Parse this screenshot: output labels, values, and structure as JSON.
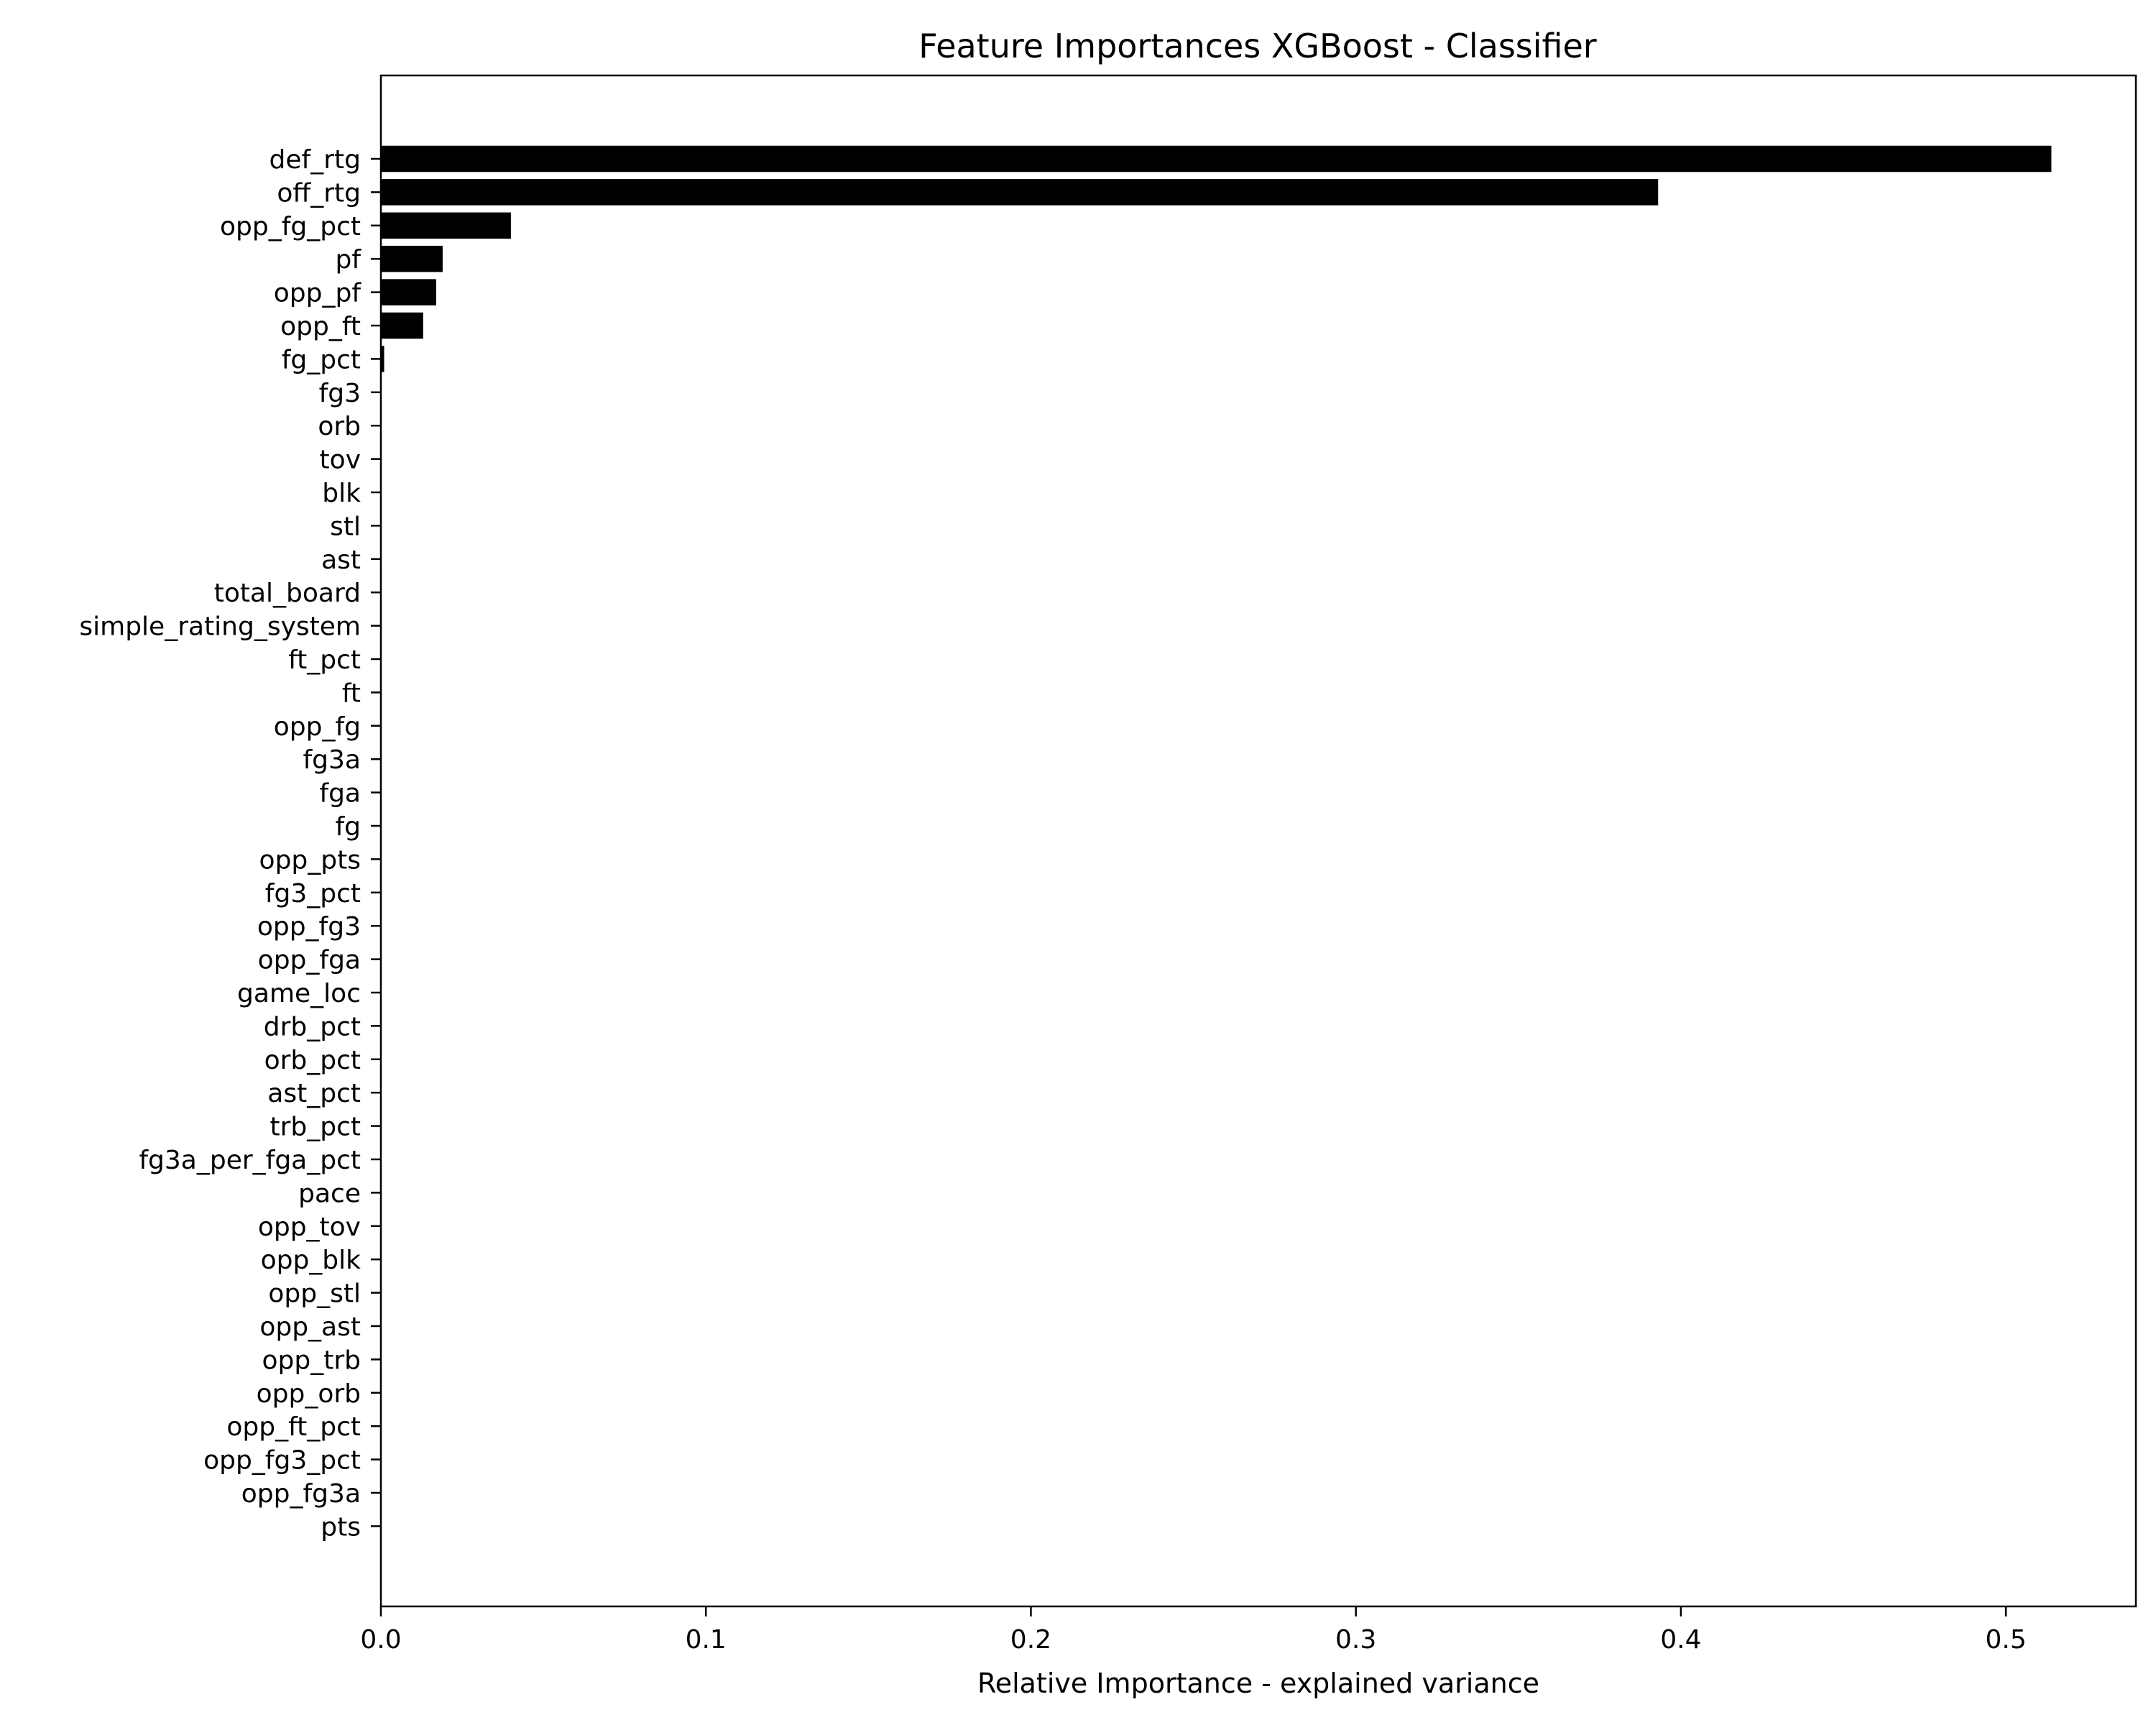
{
  "chart_data": {
    "type": "bar",
    "orientation": "horizontal",
    "title": "Feature Importances XGBoost - Classifier",
    "xlabel": "Relative Importance - explained variance",
    "ylabel": "",
    "xlim": [
      0.0,
      0.54
    ],
    "xticks": [
      0.0,
      0.1,
      0.2,
      0.3,
      0.4,
      0.5
    ],
    "xtick_labels": [
      "0.0",
      "0.1",
      "0.2",
      "0.3",
      "0.4",
      "0.5"
    ],
    "bar_color": "#000000",
    "grid": false,
    "categories": [
      "def_rtg",
      "off_rtg",
      "opp_fg_pct",
      "pf",
      "opp_pf",
      "opp_ft",
      "fg_pct",
      "fg3",
      "orb",
      "tov",
      "blk",
      "stl",
      "ast",
      "total_board",
      "simple_rating_system",
      "ft_pct",
      "ft",
      "opp_fg",
      "fg3a",
      "fga",
      "fg",
      "opp_pts",
      "fg3_pct",
      "opp_fg3",
      "opp_fga",
      "game_loc",
      "drb_pct",
      "orb_pct",
      "ast_pct",
      "trb_pct",
      "fg3a_per_fga_pct",
      "pace",
      "opp_tov",
      "opp_blk",
      "opp_stl",
      "opp_ast",
      "opp_trb",
      "opp_orb",
      "opp_ft_pct",
      "opp_fg3_pct",
      "opp_fg3a",
      "pts"
    ],
    "values": [
      0.514,
      0.393,
      0.04,
      0.019,
      0.017,
      0.013,
      0.001,
      0,
      0,
      0,
      0,
      0,
      0,
      0,
      0,
      0,
      0,
      0,
      0,
      0,
      0,
      0,
      0,
      0,
      0,
      0,
      0,
      0,
      0,
      0,
      0,
      0,
      0,
      0,
      0,
      0,
      0,
      0,
      0,
      0,
      0,
      0
    ]
  }
}
